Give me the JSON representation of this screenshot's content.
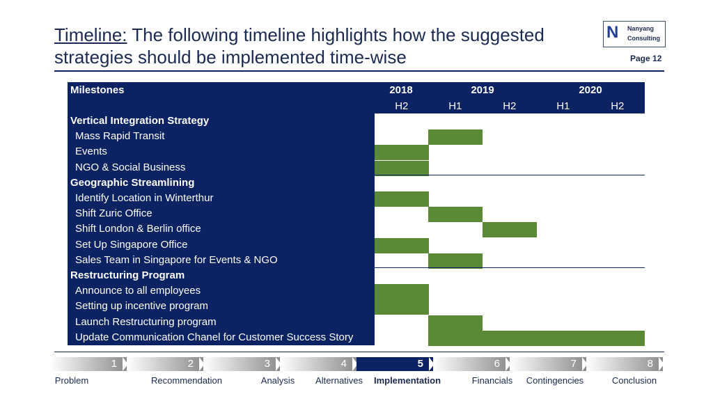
{
  "header": {
    "title_lead": "Timeline:",
    "title_rest": " The following timeline highlights how the suggested strategies should be implemented time-wise",
    "page_label": "Page 12"
  },
  "logo": {
    "letter": "N",
    "line1": "Nanyang",
    "line2": "Consulting"
  },
  "table": {
    "milestones_header": "Milestones",
    "years": [
      "2018",
      "2019",
      "2020"
    ],
    "halves": [
      "H2",
      "H1",
      "H2",
      "H1",
      "H2"
    ],
    "rows": [
      {
        "label": "Vertical Integration Strategy",
        "kind": "group",
        "bars": []
      },
      {
        "label": "Mass Rapid Transit",
        "kind": "item",
        "bars": [
          [
            1,
            1
          ]
        ]
      },
      {
        "label": "Events",
        "kind": "item",
        "bars": [
          [
            0,
            0
          ]
        ]
      },
      {
        "label": "NGO & Social Business",
        "kind": "item",
        "bars": [
          [
            0,
            0
          ]
        ]
      },
      {
        "label": "Geographic Streamlining",
        "kind": "group",
        "bars": []
      },
      {
        "label": "Identify Location in Winterthur",
        "kind": "item",
        "bars": [
          [
            0,
            0
          ]
        ]
      },
      {
        "label": "Shift Zuric Office",
        "kind": "item",
        "bars": [
          [
            1,
            1
          ]
        ]
      },
      {
        "label": "Shift London & Berlin office",
        "kind": "item",
        "bars": [
          [
            2,
            2
          ]
        ]
      },
      {
        "label": "Set Up Singapore Office",
        "kind": "item",
        "bars": [
          [
            0,
            0
          ]
        ]
      },
      {
        "label": "Sales Team in Singapore for Events & NGO",
        "kind": "item",
        "bars": [
          [
            1,
            1
          ]
        ]
      },
      {
        "label": "Restructuring Program",
        "kind": "group",
        "bars": []
      },
      {
        "label": "Announce to all employees",
        "kind": "item",
        "bars": [
          [
            0,
            0
          ]
        ]
      },
      {
        "label": "Setting up incentive program",
        "kind": "item",
        "bars": [
          [
            0,
            0
          ]
        ]
      },
      {
        "label": "Launch Restructuring program",
        "kind": "item",
        "bars": [
          [
            1,
            1
          ]
        ]
      },
      {
        "label": "Update Communication Chanel for Customer Success Story",
        "kind": "item",
        "bars": [
          [
            1,
            4
          ]
        ]
      }
    ]
  },
  "nav": {
    "steps": [
      {
        "num": "1",
        "label": "Problem"
      },
      {
        "num": "2",
        "label": "Recommendation"
      },
      {
        "num": "3",
        "label": "Analysis"
      },
      {
        "num": "4",
        "label": "Alternatives"
      },
      {
        "num": "5",
        "label": "Implementation"
      },
      {
        "num": "6",
        "label": "Financials"
      },
      {
        "num": "7",
        "label": "Contingencies"
      },
      {
        "num": "8",
        "label": "Conclusion"
      }
    ],
    "active": 4
  },
  "colors": {
    "navy": "#0b2263",
    "bar": "#5b8a37",
    "nav_inactive": "#8c8c8c",
    "text": "#1b2a52"
  }
}
